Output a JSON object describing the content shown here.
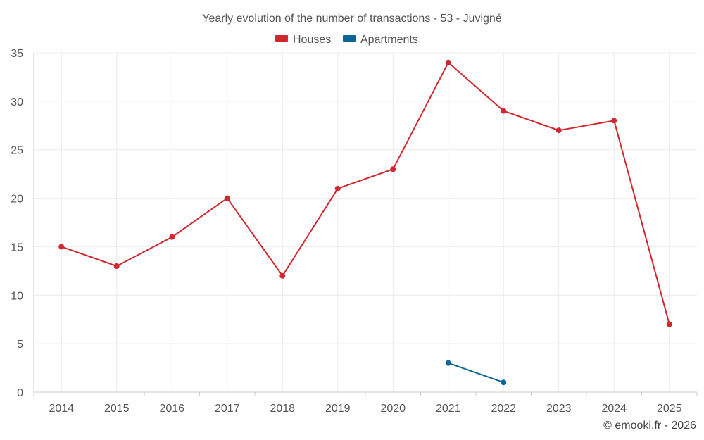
{
  "chart_data": {
    "type": "line",
    "title": "Yearly evolution of the number of transactions - 53 - Juvigné",
    "categories": [
      "2014",
      "2015",
      "2016",
      "2017",
      "2018",
      "2019",
      "2020",
      "2021",
      "2022",
      "2023",
      "2024",
      "2025"
    ],
    "ylim": [
      0,
      35
    ],
    "yticks": [
      0,
      5,
      10,
      15,
      20,
      25,
      30,
      35
    ],
    "grid": true,
    "legend_position": "top-center",
    "series": [
      {
        "name": "Houses",
        "color": "#d0282e",
        "values": [
          15,
          13,
          16,
          20,
          12,
          21,
          23,
          34,
          29,
          27,
          28,
          7
        ]
      },
      {
        "name": "Apartments",
        "color": "#0b6596",
        "values": [
          null,
          null,
          null,
          null,
          null,
          null,
          null,
          3,
          1,
          null,
          null,
          null
        ]
      }
    ]
  },
  "credit": "© emooki.fr - 2026"
}
